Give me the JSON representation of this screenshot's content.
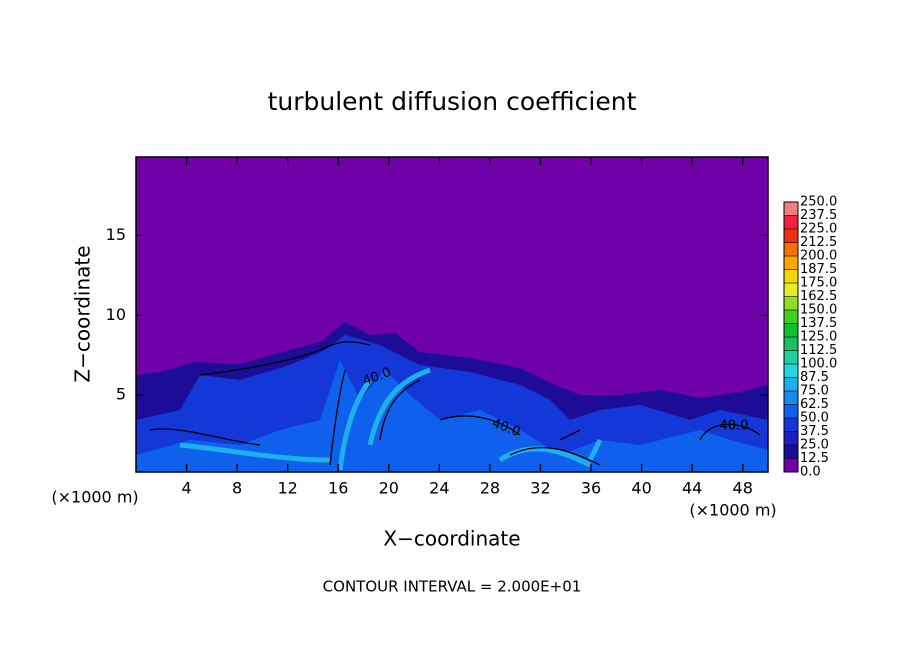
{
  "chart_data": {
    "type": "contourf",
    "title": "turbulent diffusion coefficient",
    "xlabel": "X−coordinate",
    "ylabel": "Z−coordinate",
    "x_unit_label": "(×1000 m)",
    "xlim": [
      0,
      50
    ],
    "ylim": [
      0.2,
      19.9
    ],
    "xticks": [
      4,
      8,
      12,
      16,
      20,
      24,
      28,
      32,
      36,
      40,
      44,
      48
    ],
    "yticks": [
      5,
      10,
      15
    ],
    "colorbar": {
      "levels": [
        {
          "value": 0,
          "label": "0.0"
        },
        12.5,
        {
          "value": 25,
          "label": "25.0"
        },
        37.5,
        {
          "value": 50,
          "label": "50.0"
        },
        62.5,
        {
          "value": 75,
          "label": "75.0"
        },
        87.5,
        {
          "value": 100,
          "label": "100.0"
        },
        112.5,
        {
          "value": 125,
          "label": "125.0"
        },
        137.5,
        {
          "value": 150,
          "label": "150.0"
        },
        162.5,
        {
          "value": 175,
          "label": "175.0"
        },
        187.5,
        {
          "value": 200,
          "label": "200.0"
        },
        212.5,
        {
          "value": 225,
          "label": "225.0"
        },
        237.5,
        {
          "value": 250,
          "label": "250.0"
        }
      ],
      "colors": [
        "#7000a8",
        "#1c0c98",
        "#1e1ec0",
        "#1438d8",
        "#1060ee",
        "#1688f0",
        "#1cb0ec",
        "#24d8e0",
        "#20d0a0",
        "#18c060",
        "#10c030",
        "#40d020",
        "#90e020",
        "#e0f020",
        "#f8d800",
        "#f8a800",
        "#f87000",
        "#f03010",
        "#f02040",
        "#f08080"
      ]
    },
    "contour_labels": [
      "40.0",
      "40.0",
      "40.0"
    ],
    "footnote": "CONTOUR INTERVAL = 2.000E+01"
  }
}
